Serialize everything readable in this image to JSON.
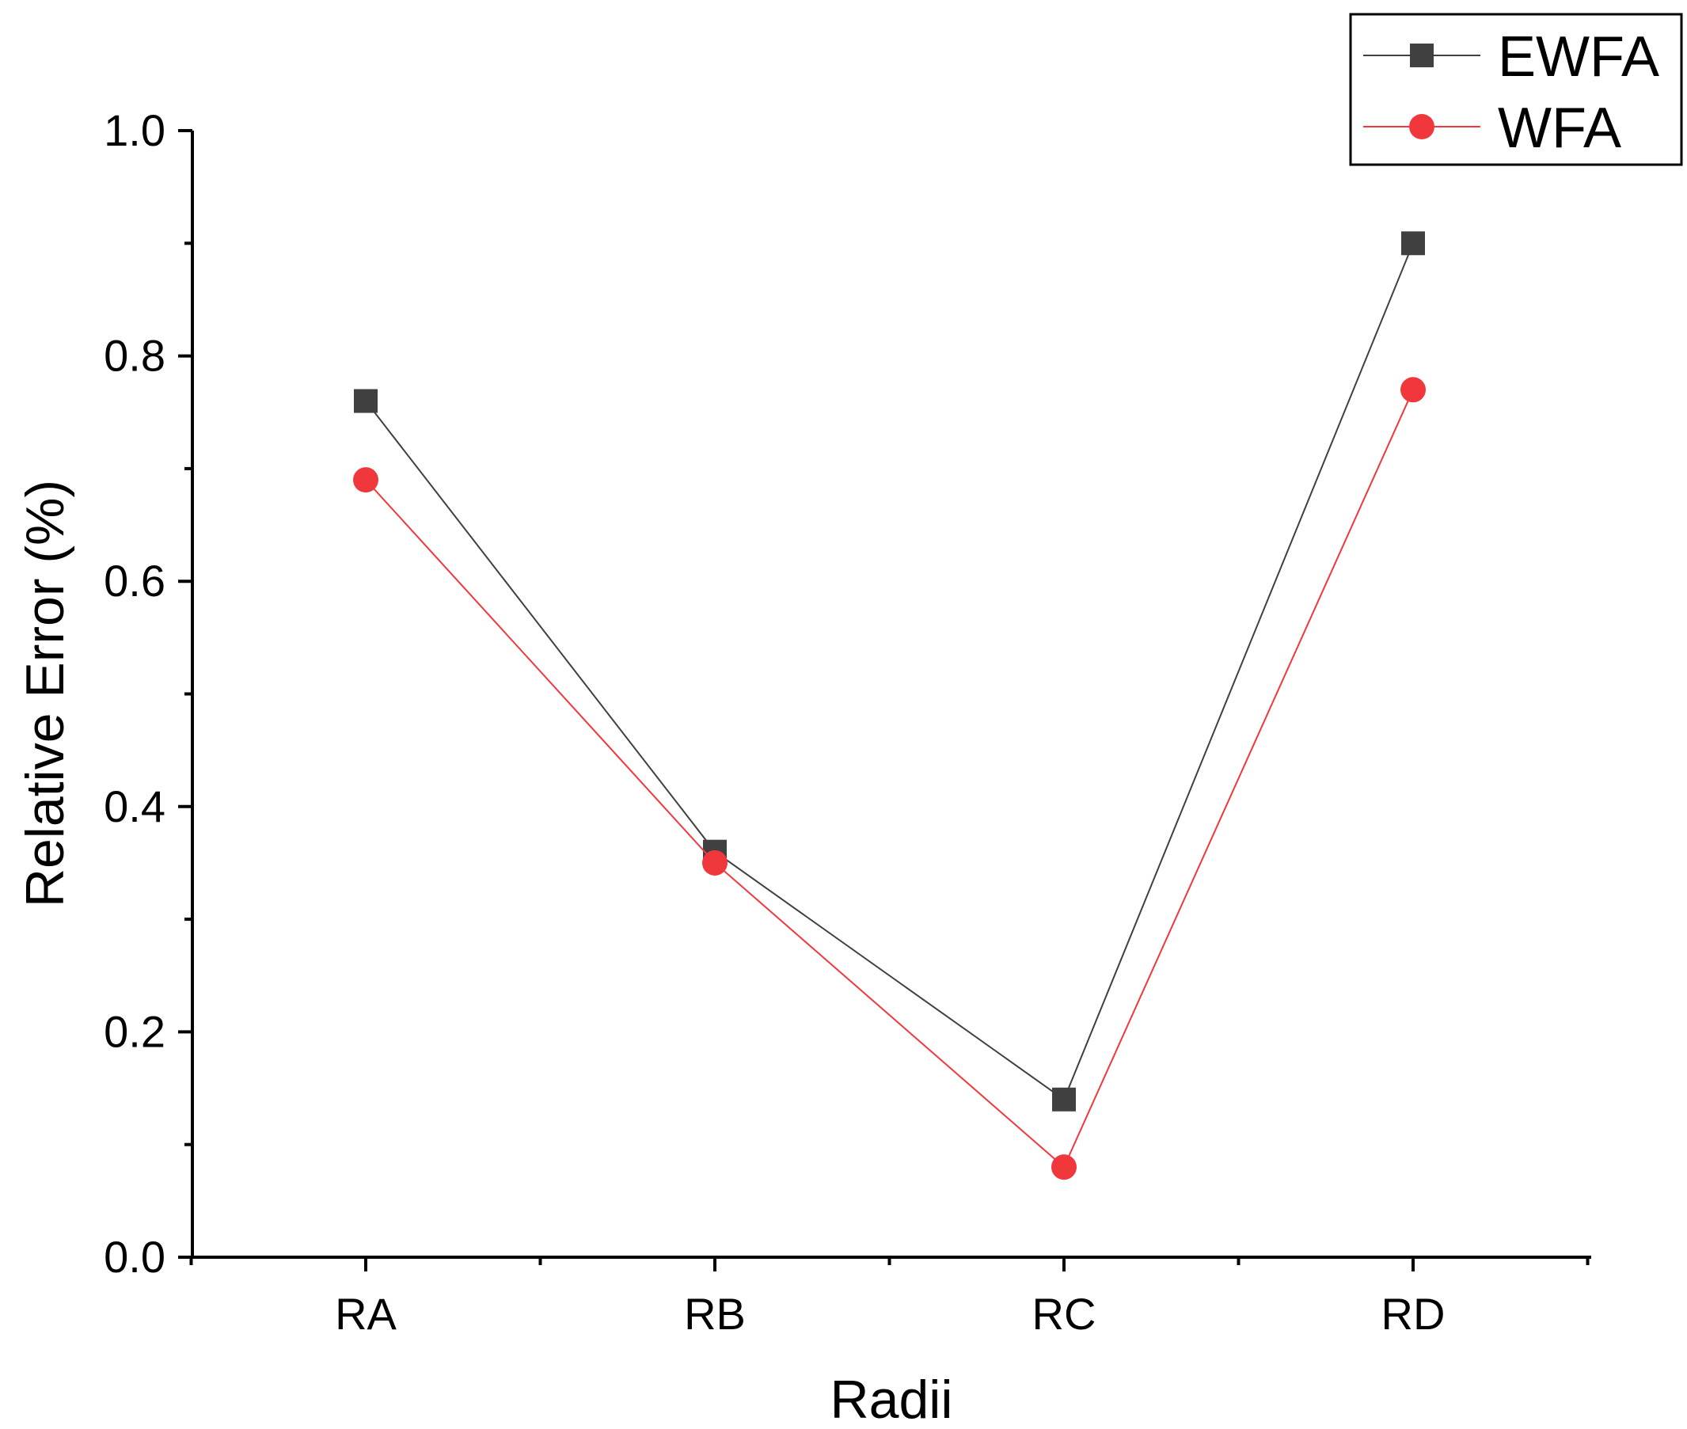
{
  "chart_data": {
    "type": "line",
    "title": "",
    "xlabel": "Radii",
    "ylabel": "Relative Error (%)",
    "categories": [
      "RA",
      "RB",
      "RC",
      "RD"
    ],
    "ylim": [
      0.0,
      1.0
    ],
    "yticks": [
      "0.0",
      "0.2",
      "0.4",
      "0.6",
      "0.8",
      "1.0"
    ],
    "yticks_values": [
      0.0,
      0.2,
      0.4,
      0.6,
      0.8,
      1.0
    ],
    "series": [
      {
        "name": "EWFA",
        "values": [
          0.76,
          0.36,
          0.14,
          0.9
        ],
        "color": "#404040",
        "marker": "square"
      },
      {
        "name": "WFA",
        "values": [
          0.69,
          0.35,
          0.08,
          0.77
        ],
        "color": "#f0383c",
        "marker": "circle"
      }
    ],
    "legend_position": "top-right",
    "grid": false
  }
}
